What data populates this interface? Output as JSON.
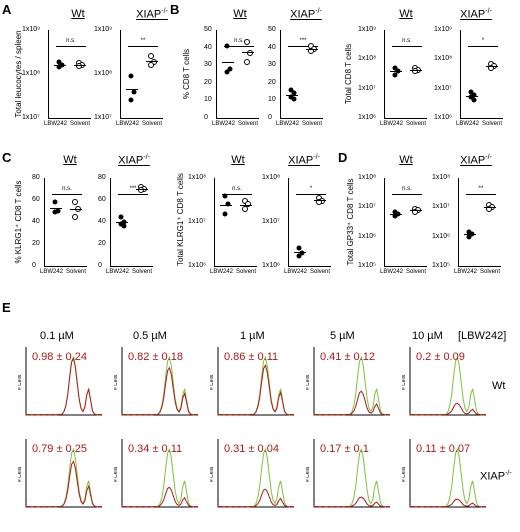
{
  "panels": {
    "A": {
      "letter": "A"
    },
    "B": {
      "letter": "B"
    },
    "C": {
      "letter": "C"
    },
    "D": {
      "letter": "D"
    },
    "E": {
      "letter": "E"
    }
  },
  "genotypes": {
    "wt": "Wt",
    "xiap": "XIAP",
    "xiap_sup": "-/-"
  },
  "categories": {
    "lbw": "LBW242",
    "solvent": "Solvent"
  },
  "ylabels": {
    "A": "Total leucocytes / spleen",
    "B1": "% CD8 T cells",
    "B2": "Total CD8 T cells",
    "C1": "% KLRG1⁺ CD8 T cells",
    "C2": "Total KLRG1⁺ CD8 T cells",
    "D": "Total GP33⁺ CD8 T cells"
  },
  "sig": {
    "A_wt": "n.s.",
    "A_xiap": "**",
    "B1_wt": "n.s.",
    "B1_xiap": "***",
    "B2_wt": "n.s.",
    "B2_xiap": "*",
    "C1_wt": "n.s.",
    "C1_xiap": "***",
    "C2_wt": "n.s.",
    "C2_xiap": "*",
    "D_wt": "n.s.",
    "D_xiap": "**"
  },
  "ticks": {
    "A": [
      "1x10⁹",
      "1x10⁸",
      "1x10⁷"
    ],
    "B1": [
      "50",
      "40",
      "30",
      "20",
      "10",
      "0"
    ],
    "B2": [
      "1x10⁹",
      "1x10⁸",
      "1x10⁷",
      "1x10⁶"
    ],
    "C1": [
      "80",
      "60",
      "40",
      "20",
      "0"
    ],
    "C2": [
      "1x10⁸",
      "1x10⁷",
      "1x10⁶"
    ],
    "D": [
      "1x10⁸",
      "1x10⁷",
      "1x10⁶",
      "1x10⁵"
    ]
  },
  "panelE": {
    "concentrations": [
      "0.1 µM",
      "0.5 µM",
      "1 µM",
      "5 µM",
      "10 µM"
    ],
    "drug_label": "[LBW242]",
    "row_labels": [
      "Wt",
      "XIAP"
    ],
    "row_label_sup": "-/-",
    "wt_values": [
      "0.98 ± 0.24",
      "0.82 ± 0.18",
      "0.86 ± 0.11",
      "0.41 ± 0.12",
      "0.2 ± 0.09"
    ],
    "xiap_values": [
      "0.79 ± 0.25",
      "0.34 ± 0.11",
      "0.31 ± 0.04",
      "0.17 ± 0.1",
      "0.11 ± 0.07"
    ],
    "yaxis_label": "# Cells",
    "colors": {
      "green": "#7cc242",
      "red": "#b01818"
    }
  },
  "chart_data": [
    {
      "type": "scatter",
      "panel": "A",
      "ylabel": "Total leucocytes / spleen",
      "yscale": "log",
      "ylim": [
        10000000.0,
        1000000000.0
      ],
      "groups": [
        {
          "genotype": "Wt",
          "category": "LBW242",
          "values": [
            190000000.0,
            160000000.0,
            145000000.0
          ]
        },
        {
          "genotype": "Wt",
          "category": "Solvent",
          "values": [
            180000000.0,
            160000000.0,
            150000000.0
          ]
        },
        {
          "genotype": "XIAP-/-",
          "category": "LBW242",
          "values": [
            90000000.0,
            40000000.0,
            25000000.0
          ]
        },
        {
          "genotype": "XIAP-/-",
          "category": "Solvent",
          "values": [
            250000000.0,
            190000000.0,
            160000000.0
          ]
        }
      ]
    },
    {
      "type": "scatter",
      "panel": "B",
      "ylabel": "% CD8 T cells",
      "ylim": [
        0,
        50
      ],
      "groups": [
        {
          "genotype": "Wt",
          "category": "LBW242",
          "values": [
            41,
            28,
            26
          ]
        },
        {
          "genotype": "Wt",
          "category": "Solvent",
          "values": [
            43,
            37,
            32
          ]
        },
        {
          "genotype": "XIAP-/-",
          "category": "LBW242",
          "values": [
            16,
            14,
            12,
            11
          ]
        },
        {
          "genotype": "XIAP-/-",
          "category": "Solvent",
          "values": [
            41,
            39,
            38
          ]
        }
      ]
    },
    {
      "type": "scatter",
      "panel": "B",
      "ylabel": "Total CD8 T cells",
      "yscale": "log",
      "ylim": [
        1000000.0,
        1000000000.0
      ],
      "groups": [
        {
          "genotype": "Wt",
          "category": "LBW242",
          "values": [
            50000000.0,
            40000000.0,
            30000000.0
          ]
        },
        {
          "genotype": "Wt",
          "category": "Solvent",
          "values": [
            50000000.0,
            45000000.0,
            40000000.0
          ]
        },
        {
          "genotype": "XIAP-/-",
          "category": "LBW242",
          "values": [
            8000000.0,
            6000000.0,
            5000000.0,
            4000000.0
          ]
        },
        {
          "genotype": "XIAP-/-",
          "category": "Solvent",
          "values": [
            70000000.0,
            60000000.0,
            50000000.0
          ]
        }
      ]
    },
    {
      "type": "scatter",
      "panel": "C",
      "ylabel": "% KLRG1⁺ CD8 T cells",
      "ylim": [
        0,
        80
      ],
      "groups": [
        {
          "genotype": "Wt",
          "category": "LBW242",
          "values": [
            58,
            50,
            49
          ]
        },
        {
          "genotype": "Wt",
          "category": "Solvent",
          "values": [
            58,
            52,
            45
          ]
        },
        {
          "genotype": "XIAP-/-",
          "category": "LBW242",
          "values": [
            45,
            40,
            38,
            36
          ]
        },
        {
          "genotype": "XIAP-/-",
          "category": "Solvent",
          "values": [
            72,
            70,
            69
          ]
        }
      ]
    },
    {
      "type": "scatter",
      "panel": "C",
      "ylabel": "Total KLRG1⁺ CD8 T cells",
      "yscale": "log",
      "ylim": [
        1000000.0,
        100000000.0
      ],
      "groups": [
        {
          "genotype": "Wt",
          "category": "LBW242",
          "values": [
            40000000.0,
            25000000.0,
            15000000.0
          ]
        },
        {
          "genotype": "Wt",
          "category": "Solvent",
          "values": [
            30000000.0,
            25000000.0,
            20000000.0
          ]
        },
        {
          "genotype": "XIAP-/-",
          "category": "LBW242",
          "values": [
            2500000.0,
            2000000.0,
            1700000.0
          ]
        },
        {
          "genotype": "XIAP-/-",
          "category": "Solvent",
          "values": [
            35000000.0,
            30000000.0,
            28000000.0
          ]
        }
      ]
    },
    {
      "type": "scatter",
      "panel": "D",
      "ylabel": "Total GP33⁺ CD8 T cells",
      "yscale": "log",
      "ylim": [
        100000.0,
        100000000.0
      ],
      "groups": [
        {
          "genotype": "Wt",
          "category": "LBW242",
          "values": [
            7000000.0,
            6000000.0,
            5000000.0
          ]
        },
        {
          "genotype": "Wt",
          "category": "Solvent",
          "values": [
            9000000.0,
            8000000.0,
            7000000.0
          ]
        },
        {
          "genotype": "XIAP-/-",
          "category": "LBW242",
          "values": [
            1500000.0,
            1200000.0,
            1000000.0
          ]
        },
        {
          "genotype": "XIAP-/-",
          "category": "Solvent",
          "values": [
            12000000.0,
            10000000.0,
            9000000.0
          ]
        }
      ]
    }
  ]
}
